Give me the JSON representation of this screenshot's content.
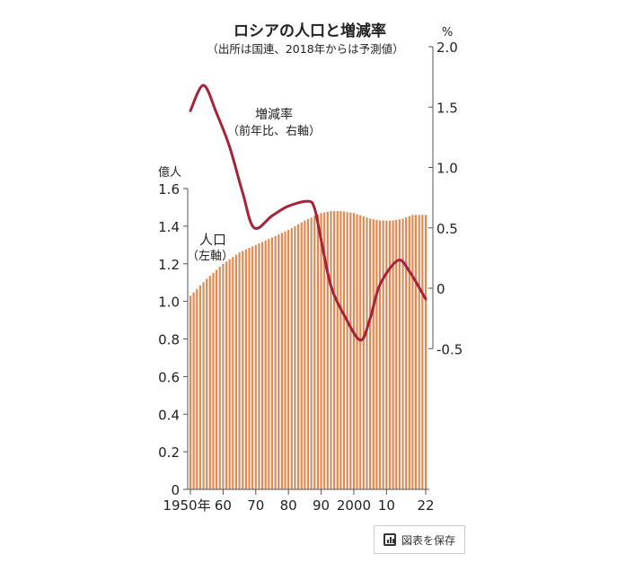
{
  "chart_data": {
    "type": "bar+line",
    "title": "ロシアの人口と増減率",
    "subtitle": "（出所は国連、2018年からは予測値）",
    "left_axis": {
      "unit": "億人",
      "ylim": [
        0,
        1.6
      ],
      "ticks": [
        "0",
        "0.2",
        "0.4",
        "0.6",
        "0.8",
        "1.0",
        "1.2",
        "1.4",
        "1.6"
      ]
    },
    "right_axis": {
      "unit": "%",
      "ylim": [
        -0.5,
        2.0
      ],
      "ticks": [
        "-0.5",
        "0",
        "0.5",
        "1.0",
        "1.5",
        "2.0"
      ]
    },
    "x_ticks": [
      {
        "year": 1950,
        "label": "1950年"
      },
      {
        "year": 1960,
        "label": "60"
      },
      {
        "year": 1970,
        "label": "70"
      },
      {
        "year": 1980,
        "label": "80"
      },
      {
        "year": 1990,
        "label": "90"
      },
      {
        "year": 2000,
        "label": "2000"
      },
      {
        "year": 2010,
        "label": "10"
      },
      {
        "year": 2022,
        "label": "22"
      }
    ],
    "population": {
      "name": "人口",
      "note": "（左軸）",
      "color": "#e08a52",
      "x": [
        1950,
        1955,
        1960,
        1965,
        1970,
        1975,
        1980,
        1985,
        1990,
        1993,
        1996,
        2000,
        2005,
        2008,
        2012,
        2015,
        2018,
        2022
      ],
      "values": [
        1.03,
        1.12,
        1.2,
        1.26,
        1.3,
        1.34,
        1.38,
        1.43,
        1.47,
        1.48,
        1.48,
        1.47,
        1.44,
        1.43,
        1.43,
        1.44,
        1.46,
        1.46
      ]
    },
    "growth": {
      "name": "増減率",
      "note": "（前年比、右軸）",
      "color": "#a3243b",
      "x": [
        1950,
        1954,
        1958,
        1962,
        1966,
        1969.5,
        1975,
        1980,
        1986,
        1988,
        1990,
        1993,
        1997,
        2002,
        2005,
        2008,
        2013.5,
        2017,
        2022
      ],
      "values": [
        1.47,
        1.68,
        1.45,
        1.17,
        0.79,
        0.5,
        0.6,
        0.68,
        0.72,
        0.66,
        0.4,
        0.02,
        -0.22,
        -0.43,
        -0.25,
        0.03,
        0.23,
        0.14,
        -0.09
      ]
    }
  },
  "button": {
    "save_label": "図表を保存"
  }
}
